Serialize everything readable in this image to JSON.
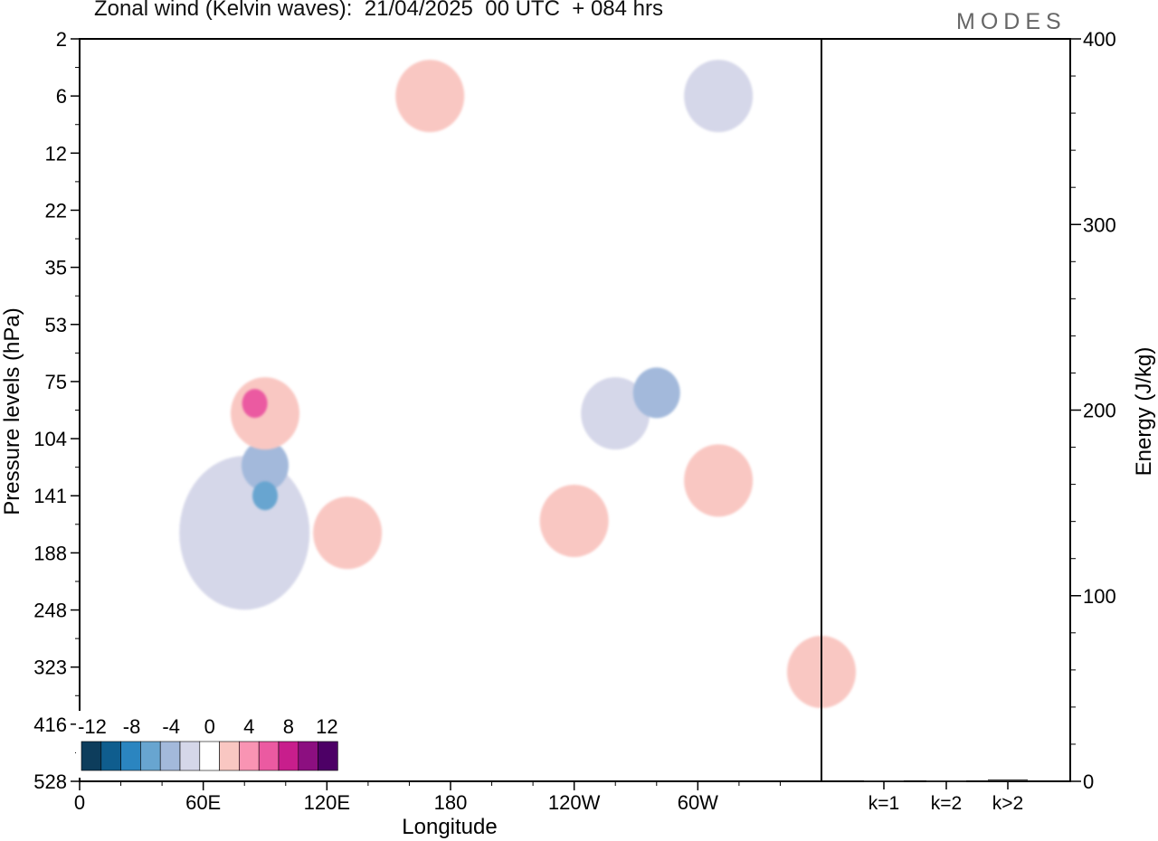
{
  "title": "Zonal wind (Kelvin waves):  21/04/2025  00 UTC  + 084 hrs",
  "logo": "MODES",
  "colors": {
    "frame": "#000000",
    "neg": [
      "#0d3d5c",
      "#0f5d8e",
      "#2b85c0",
      "#68a5d0",
      "#a3b9db",
      "#d5d7e9"
    ],
    "zero": "#ffffff",
    "pos": [
      "#f9c7c2",
      "#f994b3",
      "#eb5aa1",
      "#c81e8c",
      "#8c0f80",
      "#4d0066"
    ]
  },
  "chart_data": [
    {
      "type": "heatmap",
      "title": "Zonal wind (Kelvin waves):  21/04/2025  00 UTC  + 084 hrs",
      "xlabel": "Longitude",
      "ylabel": "Pressure levels (hPa)",
      "x_ticks": [
        "0",
        "60E",
        "120E",
        "180",
        "120W",
        "60W"
      ],
      "y_ticks": [
        "2",
        "6",
        "12",
        "22",
        "35",
        "53",
        "75",
        "104",
        "141",
        "188",
        "248",
        "323",
        "416",
        "528"
      ],
      "colorbar_labels": [
        "-12",
        "-8",
        "-4",
        "0",
        "4",
        "8",
        "12"
      ],
      "colorbar_levels": [
        -14,
        -12,
        -10,
        -8,
        -6,
        -4,
        -2,
        2,
        4,
        6,
        8,
        10,
        12,
        14
      ],
      "features": [
        {
          "sign": "neg",
          "value": -2,
          "lon": 80,
          "plev": 170,
          "note": "large negative region"
        },
        {
          "sign": "neg",
          "value": -4,
          "lon": 90,
          "plev": 120
        },
        {
          "sign": "neg",
          "value": -6,
          "lon": 90,
          "plev": 141
        },
        {
          "sign": "pos",
          "value": 2,
          "lon": 90,
          "plev": 90
        },
        {
          "sign": "pos",
          "value": 6,
          "lon": 85,
          "plev": 85
        },
        {
          "sign": "pos",
          "value": 2,
          "lon": 240,
          "plev": 160
        },
        {
          "sign": "pos",
          "value": 2,
          "lon": 310,
          "plev": 130
        },
        {
          "sign": "neg",
          "value": -2,
          "lon": 260,
          "plev": 90
        },
        {
          "sign": "neg",
          "value": -4,
          "lon": 280,
          "plev": 80
        },
        {
          "sign": "pos",
          "value": 2,
          "lon": 360,
          "plev": 330
        },
        {
          "sign": "pos",
          "value": 2,
          "lon": 130,
          "plev": 170
        },
        {
          "sign": "pos",
          "value": 2,
          "lon": 170,
          "plev": 6
        },
        {
          "sign": "neg",
          "value": -2,
          "lon": 310,
          "plev": 6
        }
      ]
    },
    {
      "type": "bar",
      "title": "",
      "ylabel": "Energy (J/kg)",
      "categories": [
        "k=1",
        "k=2",
        "k>2"
      ],
      "values": [
        0.5,
        0.4,
        1.0
      ],
      "ylim": [
        0,
        400
      ],
      "y_ticks": [
        "0",
        "100",
        "200",
        "300",
        "400"
      ]
    }
  ]
}
